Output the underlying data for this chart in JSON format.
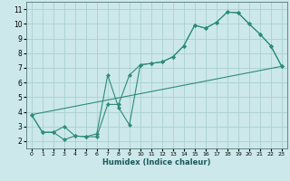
{
  "title": "",
  "xlabel": "Humidex (Indice chaleur)",
  "xlim": [
    -0.5,
    23.5
  ],
  "ylim": [
    1.5,
    11.5
  ],
  "xticks": [
    0,
    1,
    2,
    3,
    4,
    5,
    6,
    7,
    8,
    9,
    10,
    11,
    12,
    13,
    14,
    15,
    16,
    17,
    18,
    19,
    20,
    21,
    22,
    23
  ],
  "yticks": [
    2,
    3,
    4,
    5,
    6,
    7,
    8,
    9,
    10,
    11
  ],
  "bg_color": "#cce8ea",
  "grid_color": "#aacfd2",
  "line_color": "#2e8b78",
  "line1_x": [
    0,
    1,
    2,
    3,
    4,
    5,
    6,
    7,
    8,
    9,
    10,
    11,
    12,
    13,
    14,
    15,
    16,
    17,
    18,
    19,
    20,
    21,
    22,
    23
  ],
  "line1_y": [
    3.8,
    2.6,
    2.6,
    2.1,
    2.35,
    2.3,
    2.3,
    4.5,
    4.5,
    6.5,
    7.2,
    7.3,
    7.4,
    7.75,
    8.5,
    9.9,
    9.7,
    10.1,
    10.8,
    10.75,
    10.0,
    9.3,
    8.5,
    7.1
  ],
  "line2_x": [
    0,
    1,
    2,
    3,
    4,
    5,
    6,
    7,
    8,
    9,
    10,
    11,
    12,
    13,
    14,
    15,
    16,
    17,
    18,
    19,
    20,
    21,
    22,
    23
  ],
  "line2_y": [
    3.8,
    2.6,
    2.6,
    3.0,
    2.35,
    2.3,
    2.5,
    6.5,
    4.3,
    3.1,
    7.2,
    7.3,
    7.4,
    7.75,
    8.5,
    9.9,
    9.7,
    10.1,
    10.8,
    10.75,
    10.0,
    9.3,
    8.5,
    7.1
  ],
  "line3_x": [
    0,
    23
  ],
  "line3_y": [
    3.8,
    7.1
  ]
}
